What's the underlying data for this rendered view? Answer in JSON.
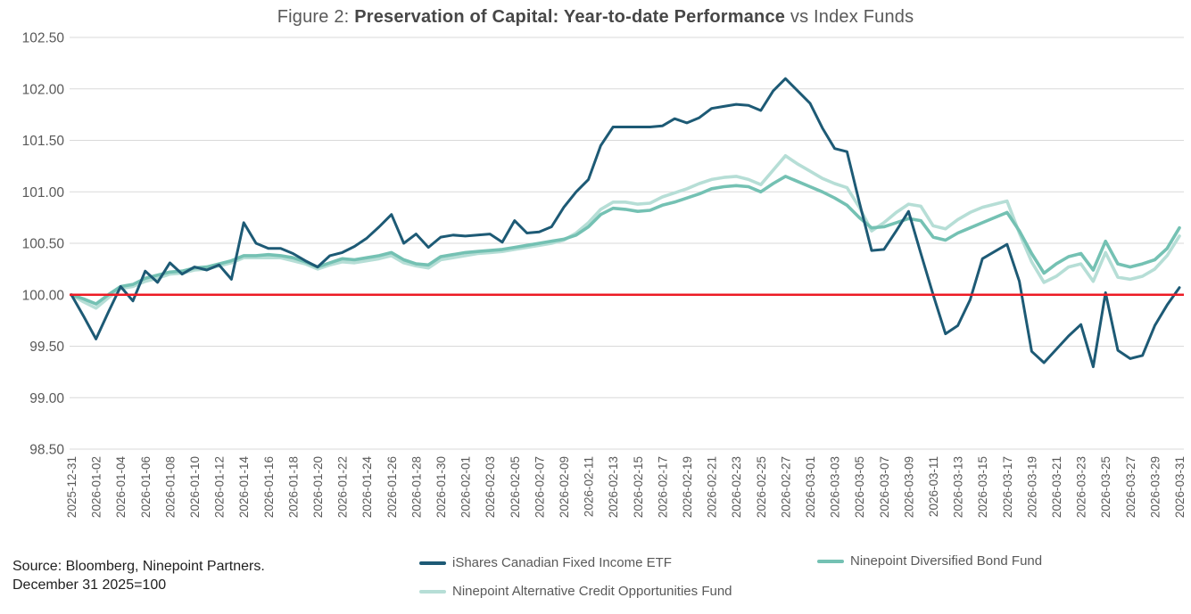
{
  "title": {
    "prefix": "Figure 2: ",
    "bold": "Preservation of Capital: Year-to-date Performance",
    "suffix": " vs Index Funds"
  },
  "source": {
    "line1": "Source: Bloomberg, Ninepoint Partners.",
    "line2": "December 31 2025=100"
  },
  "legend": [
    {
      "label": "iShares Canadian Fixed Income ETF",
      "color": "#1d5a75"
    },
    {
      "label": "Ninepoint Diversified Bond Fund",
      "color": "#74c1b3"
    },
    {
      "label": "Ninepoint Alternative Credit Opportunities Fund",
      "color": "#b6ded6"
    }
  ],
  "colors": {
    "reference_red": "#ed1b24",
    "gridline": "#d9d9d9",
    "axis_text": "#595959"
  },
  "chart_data": {
    "type": "line",
    "title": "Figure 2: Preservation of Capital: Year-to-date Performance vs Index Funds",
    "xlabel": "",
    "ylabel": "",
    "ylim": [
      98.5,
      102.5
    ],
    "y_tick_labels": [
      "102.50",
      "102.00",
      "101.50",
      "101.00",
      "100.50",
      "100.00",
      "99.50",
      "99.00",
      "98.50"
    ],
    "grid": "horizontal",
    "legend_position": "bottom",
    "x_tick_every": 2,
    "reference_line": {
      "value": 100.0,
      "color": "#ed1b24"
    },
    "x": [
      "2025-12-31",
      "2026-01-01",
      "2026-01-02",
      "2026-01-03",
      "2026-01-04",
      "2026-01-05",
      "2026-01-06",
      "2026-01-07",
      "2026-01-08",
      "2026-01-09",
      "2026-01-10",
      "2026-01-11",
      "2026-01-12",
      "2026-01-13",
      "2026-01-14",
      "2026-01-15",
      "2026-01-16",
      "2026-01-17",
      "2026-01-18",
      "2026-01-19",
      "2026-01-20",
      "2026-01-21",
      "2026-01-22",
      "2026-01-23",
      "2026-01-24",
      "2026-01-25",
      "2026-01-26",
      "2026-01-27",
      "2026-01-28",
      "2026-01-29",
      "2026-01-30",
      "2026-01-31",
      "2026-02-01",
      "2026-02-02",
      "2026-02-03",
      "2026-02-04",
      "2026-02-05",
      "2026-02-06",
      "2026-02-07",
      "2026-02-08",
      "2026-02-09",
      "2026-02-10",
      "2026-02-11",
      "2026-02-12",
      "2026-02-13",
      "2026-02-14",
      "2026-02-15",
      "2026-02-16",
      "2026-02-17",
      "2026-02-18",
      "2026-02-19",
      "2026-02-20",
      "2026-02-21",
      "2026-02-22",
      "2026-02-23",
      "2026-02-24",
      "2026-02-25",
      "2026-02-26",
      "2026-02-27",
      "2026-02-28",
      "2026-03-01",
      "2026-03-02",
      "2026-03-03",
      "2026-03-04",
      "2026-03-05",
      "2026-03-06",
      "2026-03-07",
      "2026-03-08",
      "2026-03-09",
      "2026-03-10",
      "2026-03-11",
      "2026-03-12",
      "2026-03-13",
      "2026-03-14",
      "2026-03-15",
      "2026-03-16",
      "2026-03-17",
      "2026-03-18",
      "2026-03-19",
      "2026-03-20",
      "2026-03-21",
      "2026-03-22",
      "2026-03-23",
      "2026-03-24",
      "2026-03-25",
      "2026-03-26",
      "2026-03-27",
      "2026-03-28",
      "2026-03-29",
      "2026-03-30",
      "2026-03-31"
    ],
    "series": [
      {
        "name": "iShares Canadian Fixed Income ETF",
        "color": "#1d5a75",
        "values": [
          100.0,
          99.79,
          99.57,
          99.83,
          100.08,
          99.94,
          100.23,
          100.12,
          100.31,
          100.2,
          100.27,
          100.24,
          100.29,
          100.15,
          100.7,
          100.5,
          100.45,
          100.45,
          100.4,
          100.33,
          100.27,
          100.38,
          100.41,
          100.47,
          100.55,
          100.66,
          100.78,
          100.5,
          100.59,
          100.46,
          100.56,
          100.58,
          100.57,
          100.58,
          100.59,
          100.51,
          100.72,
          100.6,
          100.61,
          100.66,
          100.85,
          101.0,
          101.12,
          101.45,
          101.63,
          101.63,
          101.63,
          101.63,
          101.64,
          101.71,
          101.67,
          101.72,
          101.81,
          101.83,
          101.85,
          101.84,
          101.79,
          101.98,
          102.1,
          101.98,
          101.86,
          101.62,
          101.42,
          101.39,
          100.9,
          100.43,
          100.44,
          100.62,
          100.81,
          100.4,
          100.0,
          99.62,
          99.7,
          99.95,
          100.35,
          100.42,
          100.49,
          100.13,
          99.45,
          99.34,
          99.47,
          99.6,
          99.71,
          99.3,
          100.02,
          99.46,
          99.38,
          99.41,
          99.7,
          99.9,
          100.07
        ]
      },
      {
        "name": "Ninepoint Diversified Bond Fund",
        "color": "#74c1b3",
        "values": [
          100.0,
          99.96,
          99.91,
          100.0,
          100.08,
          100.1,
          100.16,
          100.19,
          100.22,
          100.23,
          100.26,
          100.27,
          100.3,
          100.33,
          100.38,
          100.38,
          100.39,
          100.38,
          100.36,
          100.32,
          100.27,
          100.31,
          100.35,
          100.34,
          100.36,
          100.38,
          100.41,
          100.34,
          100.3,
          100.29,
          100.37,
          100.39,
          100.41,
          100.42,
          100.43,
          100.44,
          100.46,
          100.48,
          100.5,
          100.52,
          100.54,
          100.58,
          100.66,
          100.78,
          100.84,
          100.83,
          100.81,
          100.82,
          100.87,
          100.9,
          100.94,
          100.98,
          101.03,
          101.05,
          101.06,
          101.05,
          101.0,
          101.08,
          101.15,
          101.1,
          101.05,
          101.0,
          100.94,
          100.87,
          100.75,
          100.65,
          100.66,
          100.7,
          100.74,
          100.72,
          100.56,
          100.53,
          100.6,
          100.65,
          100.7,
          100.75,
          100.8,
          100.62,
          100.4,
          100.21,
          100.3,
          100.37,
          100.4,
          100.24,
          100.52,
          100.3,
          100.27,
          100.3,
          100.34,
          100.45,
          100.65
        ]
      },
      {
        "name": "Ninepoint Alternative Credit Opportunities Fund",
        "color": "#b6ded6",
        "values": [
          100.0,
          99.93,
          99.87,
          99.97,
          100.06,
          100.08,
          100.13,
          100.16,
          100.2,
          100.21,
          100.24,
          100.25,
          100.28,
          100.31,
          100.36,
          100.36,
          100.36,
          100.36,
          100.33,
          100.3,
          100.25,
          100.29,
          100.32,
          100.31,
          100.33,
          100.35,
          100.38,
          100.31,
          100.28,
          100.26,
          100.34,
          100.36,
          100.38,
          100.4,
          100.41,
          100.42,
          100.44,
          100.46,
          100.48,
          100.5,
          100.53,
          100.6,
          100.7,
          100.83,
          100.9,
          100.9,
          100.88,
          100.89,
          100.95,
          100.99,
          101.03,
          101.08,
          101.12,
          101.14,
          101.15,
          101.12,
          101.07,
          101.21,
          101.35,
          101.27,
          101.2,
          101.13,
          101.08,
          101.04,
          100.85,
          100.62,
          100.7,
          100.8,
          100.88,
          100.86,
          100.67,
          100.64,
          100.73,
          100.8,
          100.85,
          100.88,
          100.91,
          100.6,
          100.32,
          100.12,
          100.18,
          100.27,
          100.3,
          100.13,
          100.41,
          100.17,
          100.15,
          100.18,
          100.25,
          100.38,
          100.57
        ]
      }
    ]
  }
}
